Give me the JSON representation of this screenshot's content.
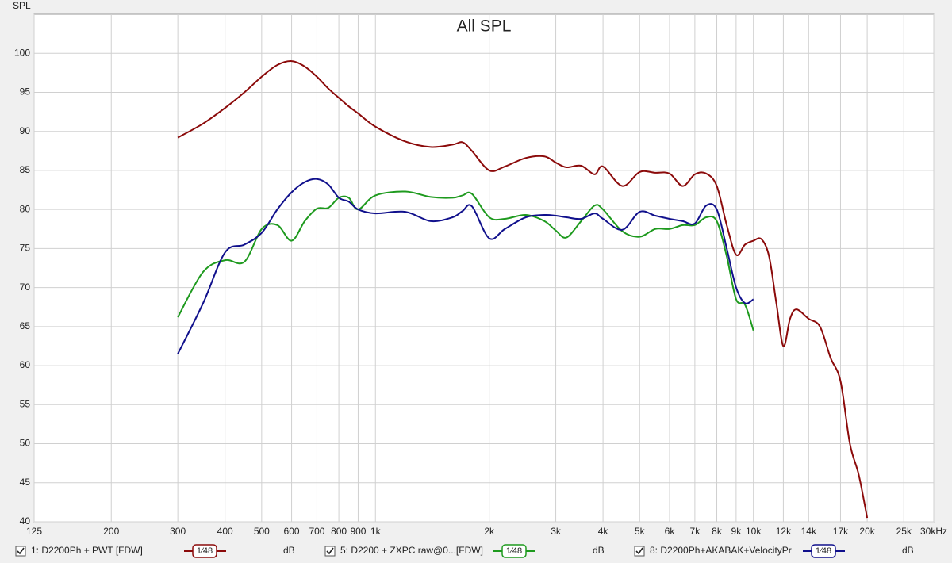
{
  "chart_data": {
    "type": "line",
    "title": "All SPL",
    "ylabel": "SPL",
    "xscale": "log",
    "grid": true,
    "xlim": [
      125,
      30000
    ],
    "ylim": [
      40,
      105
    ],
    "yticks": [
      40,
      45,
      50,
      55,
      60,
      65,
      70,
      75,
      80,
      85,
      90,
      95,
      100
    ],
    "xticks": [
      125,
      200,
      300,
      400,
      500,
      600,
      700,
      800,
      900,
      {
        "value": 1000,
        "label": "1k"
      },
      {
        "value": 2000,
        "label": "2k"
      },
      {
        "value": 3000,
        "label": "3k"
      },
      {
        "value": 4000,
        "label": "4k"
      },
      {
        "value": 5000,
        "label": "5k"
      },
      {
        "value": 6000,
        "label": "6k"
      },
      {
        "value": 7000,
        "label": "7k"
      },
      {
        "value": 8000,
        "label": "8k"
      },
      {
        "value": 9000,
        "label": "9k"
      },
      {
        "value": 10000,
        "label": "10k"
      },
      {
        "value": 12000,
        "label": "12k"
      },
      {
        "value": 14000,
        "label": "14k"
      },
      {
        "value": 17000,
        "label": "17k"
      },
      {
        "value": 20000,
        "label": "20k"
      },
      {
        "value": 25000,
        "label": "25k"
      },
      {
        "value": 30000,
        "label": "30kHz"
      }
    ],
    "x": [
      300,
      350,
      400,
      450,
      500,
      550,
      600,
      650,
      700,
      750,
      800,
      850,
      900,
      1000,
      1200,
      1400,
      1600,
      1700,
      1800,
      2000,
      2200,
      2500,
      2800,
      3000,
      3200,
      3500,
      3800,
      4000,
      4500,
      5000,
      5500,
      6000,
      6500,
      7000,
      7500,
      8000,
      8500,
      9000,
      9500,
      10000,
      10500,
      11000,
      11500,
      12000,
      12500,
      13000,
      14000,
      15000,
      16000,
      17000,
      18000,
      19000,
      20000
    ],
    "series": [
      {
        "name": "1: D2200Ph + PWT [FDW]",
        "color": "#8b0a0a",
        "smoothing": "1⁄48",
        "unit": "dB",
        "values": [
          89.2,
          91,
          93,
          95,
          97,
          98.5,
          99,
          98.3,
          97,
          95.5,
          94.3,
          93.2,
          92.3,
          90.6,
          88.7,
          88,
          88.3,
          88.6,
          87.5,
          85,
          85.5,
          86.6,
          86.8,
          86,
          85.4,
          85.6,
          84.5,
          85.5,
          83,
          84.8,
          84.7,
          84.6,
          83,
          84.5,
          84.6,
          83,
          78,
          74.2,
          75.5,
          76,
          76.2,
          74,
          68,
          62.5,
          66,
          67.2,
          66,
          65,
          61,
          58,
          50,
          46,
          40.5
        ]
      },
      {
        "name": "5: D2200 + ZXPC raw@0...[FDW]",
        "color": "#1e9a1e",
        "smoothing": "1⁄48",
        "unit": "dB",
        "values": [
          66.2,
          72,
          73.5,
          73.3,
          77.5,
          78,
          76,
          78.5,
          80.1,
          80.2,
          81.5,
          81.5,
          80,
          81.8,
          82.3,
          81.6,
          81.5,
          81.8,
          82,
          79,
          78.8,
          79.3,
          78.5,
          77.3,
          76.4,
          78.5,
          80.5,
          80,
          77.2,
          76.5,
          77.5,
          77.5,
          78,
          78,
          79,
          78.5,
          74,
          68.5,
          67.8,
          64.5,
          null,
          null,
          null,
          null,
          null,
          null,
          null,
          null,
          null,
          null,
          null,
          null,
          null
        ]
      },
      {
        "name": "8: D2200Ph+AKABAK+VelocityPr",
        "color": "#10108c",
        "smoothing": "1⁄48",
        "unit": "dB",
        "values": [
          61.5,
          68,
          74.5,
          75.5,
          77,
          80,
          82.2,
          83.5,
          83.9,
          83.2,
          81.5,
          81,
          80,
          79.5,
          79.7,
          78.5,
          79,
          79.8,
          80.4,
          76.3,
          77.5,
          79,
          79.3,
          79.2,
          79,
          78.8,
          79.5,
          78.8,
          77.4,
          79.7,
          79.2,
          78.8,
          78.5,
          78.2,
          80.5,
          80,
          75,
          70,
          68,
          68.5,
          null,
          null,
          null,
          null,
          null,
          null,
          null,
          null,
          null,
          null,
          null,
          null,
          null
        ]
      }
    ]
  }
}
